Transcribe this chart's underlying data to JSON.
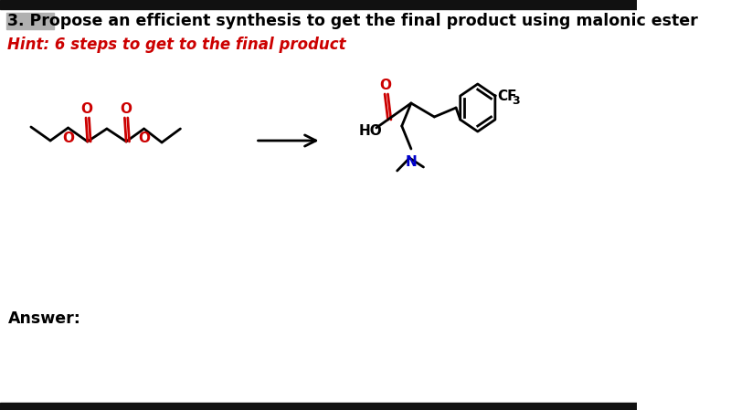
{
  "title_text": "3. Propose an efficient synthesis to get the final product using malonic ester",
  "hint_text": "Hint: 6 steps to get to the final product",
  "answer_text": "Answer:",
  "title_color": "#000000",
  "hint_color": "#cc0000",
  "answer_color": "#000000",
  "background_color": "#ffffff",
  "top_bar_color": "#111111",
  "bottom_bar_color": "#111111",
  "highlight_color": "#b0b0b0",
  "title_fontsize": 12.5,
  "hint_fontsize": 12,
  "answer_fontsize": 12.5,
  "red_color": "#cc0000",
  "blue_color": "#0000cc",
  "black_color": "#000000"
}
